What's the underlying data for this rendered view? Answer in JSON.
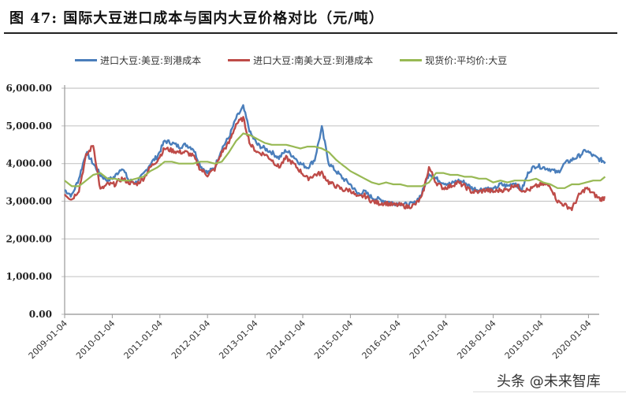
{
  "figure": {
    "title": "图 47: 国际大豆进口成本与国内大豆价格对比（元/吨）",
    "watermark": "头条 @未来智库"
  },
  "legend": [
    {
      "label": "进口大豆:美豆:到港成本",
      "color": "#4A7EBB"
    },
    {
      "label": "进口大豆:南美大豆:到港成本",
      "color": "#BE4B48"
    },
    {
      "label": "现货价:平均价:大豆",
      "color": "#98B954"
    }
  ],
  "chart_data": {
    "type": "line",
    "title": "国际大豆进口成本与国内大豆价格对比（元/吨）",
    "xlabel": "",
    "ylabel": "",
    "ylim": [
      0,
      6000
    ],
    "yticks": [
      "0.00",
      "1,000.00",
      "2,000.00",
      "3,000.00",
      "4,000.00",
      "5,000.00",
      "6,000.00"
    ],
    "xticks": [
      "2009-01-04",
      "2010-01-04",
      "2011-01-04",
      "2012-01-04",
      "2013-01-04",
      "2014-01-04",
      "2015-01-04",
      "2016-01-04",
      "2017-01-04",
      "2018-01-04",
      "2019-01-04",
      "2020-01-04"
    ],
    "grid": "horizontal",
    "legend_position": "top",
    "x": [
      2009.0,
      2009.15,
      2009.3,
      2009.45,
      2009.6,
      2009.75,
      2009.9,
      2010.05,
      2010.2,
      2010.35,
      2010.5,
      2010.65,
      2010.8,
      2010.95,
      2011.1,
      2011.25,
      2011.4,
      2011.55,
      2011.7,
      2011.85,
      2012.0,
      2012.15,
      2012.3,
      2012.45,
      2012.6,
      2012.75,
      2012.9,
      2013.05,
      2013.2,
      2013.35,
      2013.5,
      2013.65,
      2013.8,
      2013.95,
      2014.1,
      2014.25,
      2014.4,
      2014.55,
      2014.7,
      2014.85,
      2015.0,
      2015.15,
      2015.3,
      2015.45,
      2015.6,
      2015.75,
      2015.9,
      2016.05,
      2016.2,
      2016.35,
      2016.5,
      2016.65,
      2016.8,
      2016.95,
      2017.1,
      2017.25,
      2017.4,
      2017.55,
      2017.7,
      2017.85,
      2018.0,
      2018.15,
      2018.3,
      2018.45,
      2018.6,
      2018.75,
      2018.9,
      2019.05,
      2019.2,
      2019.35,
      2019.5,
      2019.65,
      2019.8,
      2019.95,
      2020.1,
      2020.25,
      2020.35
    ],
    "series": [
      {
        "name": "进口大豆:美豆:到港成本",
        "color": "#4A7EBB",
        "values": [
          3300,
          3150,
          3600,
          4300,
          4000,
          3700,
          3550,
          3650,
          3900,
          3550,
          3500,
          3700,
          4000,
          4200,
          4600,
          4550,
          4450,
          4500,
          4400,
          3950,
          3750,
          3900,
          4400,
          4700,
          5200,
          5500,
          4800,
          4500,
          4400,
          4300,
          4150,
          4350,
          4200,
          4000,
          3900,
          4100,
          4950,
          4000,
          3800,
          3600,
          3450,
          3200,
          3250,
          3100,
          3050,
          3000,
          2950,
          2950,
          2900,
          2950,
          3200,
          3750,
          3600,
          3500,
          3450,
          3550,
          3500,
          3350,
          3300,
          3350,
          3300,
          3450,
          3400,
          3500,
          3300,
          3800,
          3950,
          3900,
          3850,
          3750,
          4000,
          4100,
          4200,
          4350,
          4200,
          4100,
          4050
        ]
      },
      {
        "name": "进口大豆:南美大豆:到港成本",
        "color": "#BE4B48",
        "values": [
          3200,
          3050,
          3300,
          4200,
          4500,
          3300,
          3450,
          3450,
          3600,
          3500,
          3450,
          3600,
          3900,
          4100,
          4400,
          4350,
          4300,
          4300,
          4200,
          3850,
          3700,
          3850,
          4300,
          4550,
          5050,
          5200,
          4500,
          4300,
          4250,
          4100,
          3900,
          4150,
          4000,
          3800,
          3600,
          3700,
          3750,
          3500,
          3400,
          3300,
          3300,
          3100,
          3150,
          3000,
          2950,
          2950,
          2900,
          2900,
          2850,
          2900,
          3100,
          3900,
          3500,
          3350,
          3400,
          3500,
          3400,
          3250,
          3250,
          3300,
          3250,
          3300,
          3300,
          3450,
          3300,
          3300,
          3400,
          3450,
          3400,
          3000,
          2900,
          2800,
          3150,
          3350,
          3200,
          3050,
          3100
        ]
      },
      {
        "name": "现货价:平均价:大豆",
        "color": "#98B954",
        "values": [
          3550,
          3400,
          3400,
          3550,
          3700,
          3750,
          3600,
          3600,
          3550,
          3550,
          3600,
          3650,
          3800,
          3900,
          4050,
          4050,
          4000,
          4000,
          4000,
          4050,
          4050,
          4000,
          4050,
          4300,
          4600,
          4800,
          4750,
          4650,
          4550,
          4500,
          4500,
          4500,
          4450,
          4400,
          4450,
          4450,
          4400,
          4300,
          4100,
          3950,
          3800,
          3700,
          3600,
          3500,
          3450,
          3500,
          3450,
          3450,
          3400,
          3400,
          3400,
          3500,
          3750,
          3750,
          3700,
          3700,
          3650,
          3650,
          3600,
          3600,
          3500,
          3550,
          3500,
          3550,
          3550,
          3550,
          3600,
          3500,
          3450,
          3350,
          3350,
          3450,
          3450,
          3500,
          3550,
          3550,
          3650
        ]
      }
    ]
  }
}
